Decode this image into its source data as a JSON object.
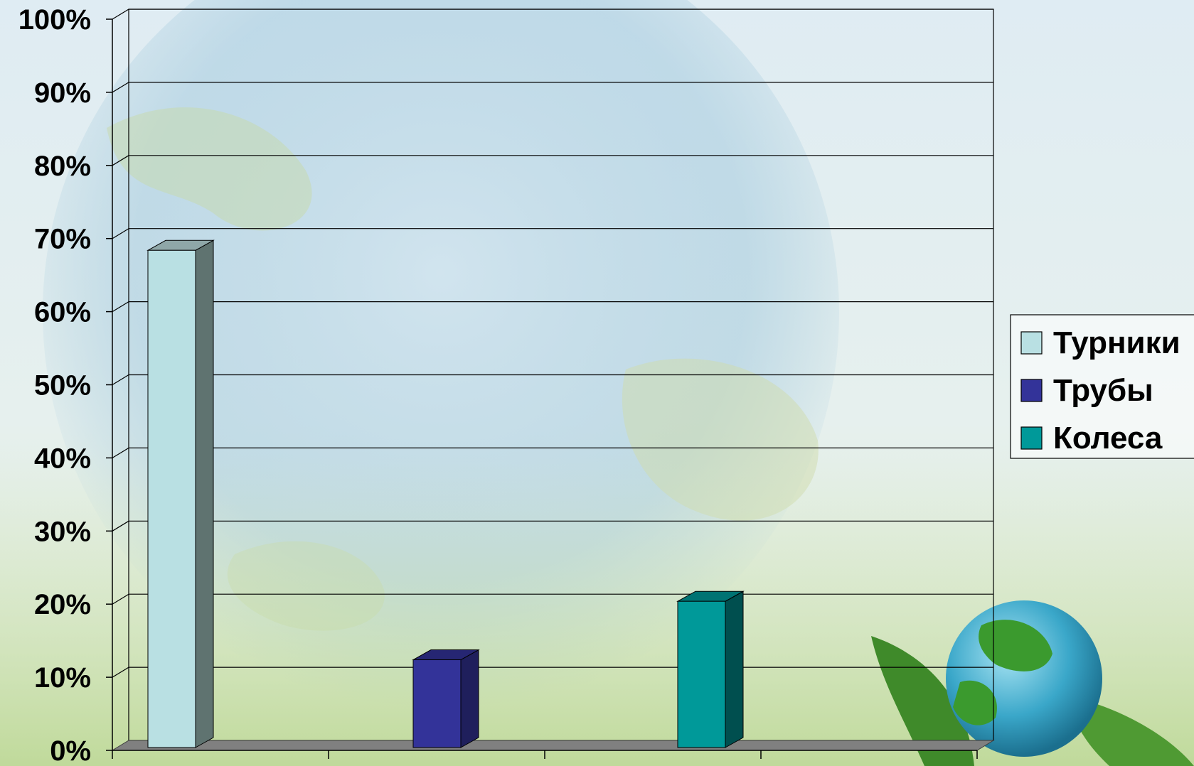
{
  "chart_data": {
    "type": "bar",
    "categories": [
      "",
      "",
      "",
      ""
    ],
    "series": [
      {
        "name": "Турники",
        "values": [
          68,
          0,
          0,
          0
        ],
        "color": "#b9e0e3"
      },
      {
        "name": "Трубы",
        "values": [
          0,
          12,
          0,
          0
        ],
        "color": "#333399"
      },
      {
        "name": "Колеса",
        "values": [
          0,
          0,
          20,
          0
        ],
        "color": "#009999"
      }
    ],
    "bars": [
      {
        "series": "Турники",
        "value": 68,
        "color": "#b9e0e3",
        "side": "#5f7370",
        "top": "#8fa7a8"
      },
      {
        "series": "Трубы",
        "value": 12,
        "color": "#333399",
        "side": "#1f1f5c",
        "top": "#262673"
      },
      {
        "series": "Колеса",
        "value": 20,
        "color": "#009999",
        "side": "#004f4f",
        "top": "#007373"
      }
    ],
    "yticks": [
      "0%",
      "10%",
      "20%",
      "30%",
      "40%",
      "50%",
      "60%",
      "70%",
      "80%",
      "90%",
      "100%"
    ],
    "ylim": [
      0,
      100
    ],
    "grid": true,
    "legend": {
      "position": "right",
      "items": [
        "Турники",
        "Трубы",
        "Колеса"
      ]
    },
    "title": "",
    "xlabel": "",
    "ylabel": ""
  },
  "background": {
    "description_icons": [
      "globe-icon",
      "leaf-icon",
      "grass-icon"
    ]
  }
}
